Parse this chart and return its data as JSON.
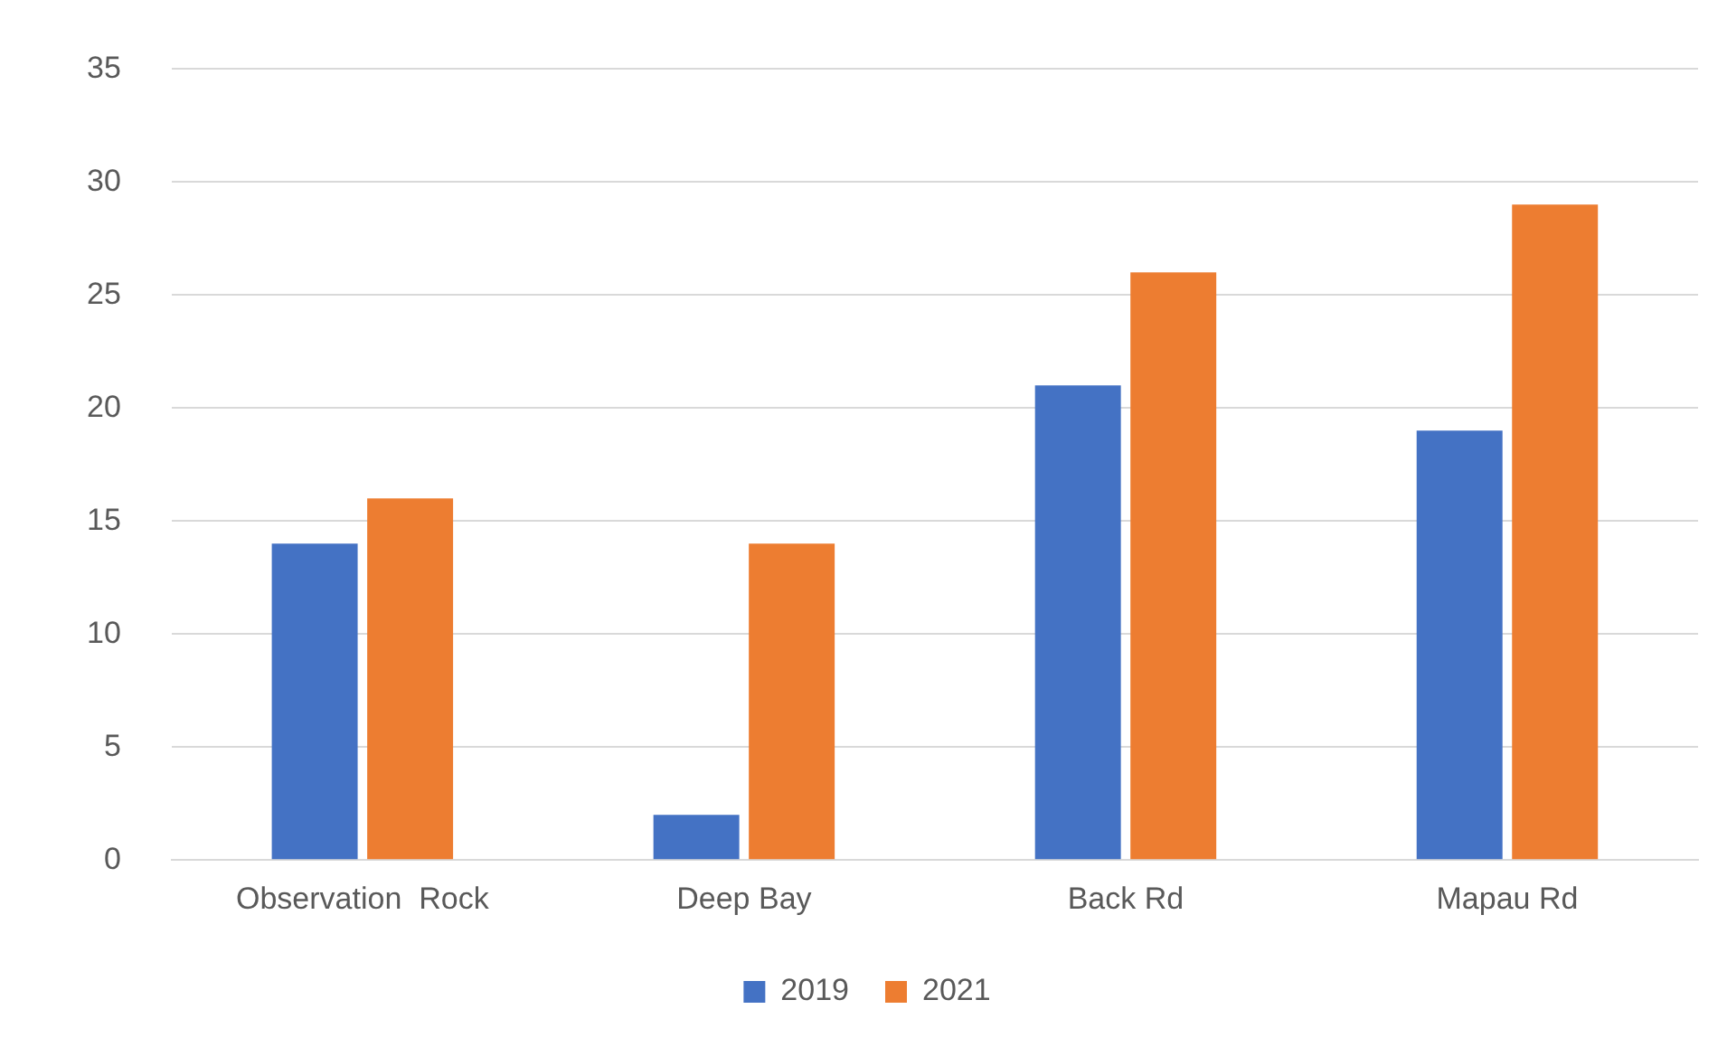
{
  "chart_data": {
    "type": "bar",
    "categories": [
      "Observation  Rock",
      "Deep Bay",
      "Back Rd",
      "Mapau Rd"
    ],
    "series": [
      {
        "name": "2019",
        "color": "#4472c4",
        "values": [
          14,
          2,
          21,
          19
        ]
      },
      {
        "name": "2021",
        "color": "#ed7d31",
        "values": [
          16,
          14,
          26,
          29
        ]
      }
    ],
    "ylim": [
      0,
      35
    ],
    "yticks": [
      0,
      5,
      10,
      15,
      20,
      25,
      30,
      35
    ],
    "grid": "y",
    "legend": "bottom"
  }
}
